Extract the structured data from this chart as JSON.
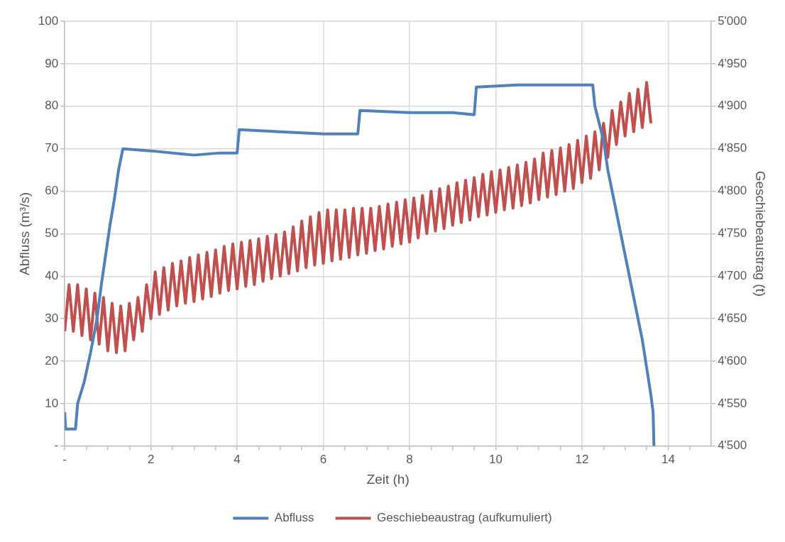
{
  "chart_data": {
    "type": "line",
    "xlabel": "Zeit (h)",
    "ylabel": "Abfluss (m³/s)",
    "y2label": "Geschiebeaustrag (t)",
    "xlim": [
      0,
      15
    ],
    "xticks": [
      {
        "value": 0,
        "label": "-"
      },
      {
        "value": 0.5,
        "label": null
      },
      {
        "value": 1,
        "label": null
      },
      {
        "value": 1.5,
        "label": null
      },
      2,
      {
        "value": 2.5,
        "label": null
      },
      {
        "value": 3,
        "label": null
      },
      {
        "value": 3.5,
        "label": null
      },
      4,
      {
        "value": 4.5,
        "label": null
      },
      {
        "value": 5,
        "label": null
      },
      {
        "value": 5.5,
        "label": null
      },
      6,
      {
        "value": 6.5,
        "label": null
      },
      {
        "value": 7,
        "label": null
      },
      {
        "value": 7.5,
        "label": null
      },
      8,
      {
        "value": 8.5,
        "label": null
      },
      {
        "value": 9,
        "label": null
      },
      {
        "value": 9.5,
        "label": null
      },
      10,
      {
        "value": 10.5,
        "label": null
      },
      {
        "value": 11,
        "label": null
      },
      {
        "value": 11.5,
        "label": null
      },
      12,
      {
        "value": 12.5,
        "label": null
      },
      {
        "value": 13,
        "label": null
      },
      {
        "value": 13.5,
        "label": null
      },
      14,
      {
        "value": 14.5,
        "label": null
      }
    ],
    "ylim": [
      0,
      100
    ],
    "yticks": [
      {
        "value": 0,
        "label": "-"
      },
      10,
      20,
      30,
      40,
      50,
      60,
      70,
      80,
      90,
      100
    ],
    "y2lim": [
      4500,
      5000
    ],
    "y2ticks": [
      {
        "value": 4500,
        "label": "4'500"
      },
      {
        "value": 4550,
        "label": "4'550"
      },
      {
        "value": 4600,
        "label": "4'600"
      },
      {
        "value": 4650,
        "label": "4'650"
      },
      {
        "value": 4700,
        "label": "4'700"
      },
      {
        "value": 4750,
        "label": "4'750"
      },
      {
        "value": 4800,
        "label": "4'800"
      },
      {
        "value": 4850,
        "label": "4'850"
      },
      {
        "value": 4900,
        "label": "4'900"
      },
      {
        "value": 4950,
        "label": "4'950"
      },
      {
        "value": 5000,
        "label": "5'000"
      }
    ],
    "grid": true,
    "legend": "bottom",
    "marker": "none",
    "line_style": "solid",
    "series": [
      {
        "name": "Abfluss",
        "color": "#4f81bd",
        "x": [
          0,
          0.02,
          0.25,
          0.3,
          0.45,
          0.6,
          0.75,
          0.85,
          0.95,
          1.05,
          1.15,
          1.25,
          1.35,
          2,
          3,
          3.6,
          4,
          4.05,
          5,
          6,
          6.8,
          6.85,
          8,
          9,
          9.5,
          9.55,
          10.5,
          11.5,
          12.25,
          12.3,
          12.5,
          12.6,
          12.8,
          13,
          13.2,
          13.4,
          13.6,
          13.65,
          13.67
        ],
        "values": [
          8,
          4,
          4,
          10,
          15,
          22,
          30,
          38,
          45,
          52,
          58,
          65,
          70,
          69.5,
          68.5,
          69,
          69,
          74.5,
          74,
          73.5,
          73.5,
          79,
          78.5,
          78.5,
          78,
          84.5,
          85,
          85,
          85,
          80,
          72,
          65,
          55,
          45,
          35,
          25,
          12,
          8,
          0
        ]
      },
      {
        "name": "Geschiebeaustrag (aufkumuliert)",
        "color": "#c0504d",
        "axis": "y2",
        "x": [
          0,
          0.1,
          0.2,
          0.3,
          0.4,
          0.5,
          0.6,
          0.7,
          0.8,
          0.9,
          1,
          1.1,
          1.2,
          1.3,
          1.4,
          1.5,
          1.6,
          1.7,
          1.8,
          1.9,
          2,
          2.1,
          2.2,
          2.3,
          2.4,
          2.5,
          2.6,
          2.7,
          2.8,
          2.9,
          3,
          3.1,
          3.2,
          3.3,
          3.4,
          3.5,
          3.6,
          3.7,
          3.8,
          3.9,
          4,
          4.1,
          4.2,
          4.3,
          4.4,
          4.5,
          4.6,
          4.7,
          4.8,
          4.9,
          5,
          5.1,
          5.2,
          5.3,
          5.4,
          5.5,
          5.6,
          5.7,
          5.8,
          5.9,
          6,
          6.1,
          6.2,
          6.3,
          6.4,
          6.5,
          6.6,
          6.7,
          6.8,
          6.9,
          7,
          7.1,
          7.2,
          7.3,
          7.4,
          7.5,
          7.6,
          7.7,
          7.8,
          7.9,
          8,
          8.1,
          8.2,
          8.3,
          8.4,
          8.5,
          8.6,
          8.7,
          8.8,
          8.9,
          9,
          9.1,
          9.2,
          9.3,
          9.4,
          9.5,
          9.6,
          9.7,
          9.8,
          9.9,
          10,
          10.1,
          10.2,
          10.3,
          10.4,
          10.5,
          10.6,
          10.7,
          10.8,
          10.9,
          11,
          11.1,
          11.2,
          11.3,
          11.4,
          11.5,
          11.6,
          11.7,
          11.8,
          11.9,
          12,
          12.1,
          12.2,
          12.3,
          12.4,
          12.5,
          12.6,
          12.7,
          12.8,
          12.9,
          13,
          13.1,
          13.2,
          13.3,
          13.4,
          13.5,
          13.6
        ],
        "values": [
          4635,
          4690,
          4635,
          4690,
          4630,
          4685,
          4625,
          4680,
          4620,
          4675,
          4612,
          4668,
          4610,
          4665,
          4612,
          4668,
          4625,
          4675,
          4635,
          4690,
          4650,
          4705,
          4655,
          4710,
          4660,
          4715,
          4665,
          4718,
          4668,
          4722,
          4670,
          4725,
          4673,
          4728,
          4676,
          4731,
          4680,
          4735,
          4683,
          4738,
          4685,
          4740,
          4688,
          4742,
          4690,
          4744,
          4694,
          4747,
          4697,
          4749,
          4700,
          4752,
          4703,
          4758,
          4706,
          4765,
          4710,
          4770,
          4713,
          4775,
          4715,
          4778,
          4718,
          4778,
          4720,
          4778,
          4722,
          4780,
          4725,
          4780,
          4727,
          4780,
          4730,
          4782,
          4732,
          4785,
          4735,
          4787,
          4738,
          4790,
          4740,
          4792,
          4745,
          4795,
          4750,
          4800,
          4753,
          4803,
          4756,
          4806,
          4760,
          4810,
          4763,
          4813,
          4766,
          4816,
          4770,
          4820,
          4772,
          4823,
          4775,
          4825,
          4778,
          4828,
          4780,
          4831,
          4783,
          4834,
          4786,
          4838,
          4790,
          4845,
          4793,
          4848,
          4796,
          4851,
          4800,
          4855,
          4803,
          4860,
          4810,
          4865,
          4815,
          4870,
          4825,
          4880,
          4840,
          4895,
          4855,
          4905,
          4865,
          4915,
          4870,
          4920,
          4875,
          4928,
          4880
        ]
      }
    ]
  }
}
